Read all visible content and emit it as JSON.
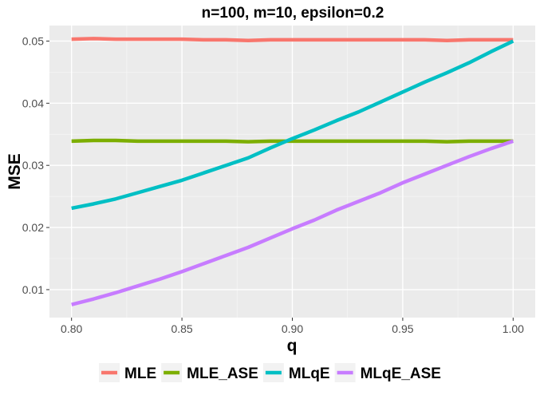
{
  "chart_data": {
    "type": "line",
    "title": "n=100, m=10, epsilon=0.2",
    "xlabel": "q",
    "ylabel": "MSE",
    "xlim": [
      0.79,
      1.01
    ],
    "ylim": [
      0.0055,
      0.0525
    ],
    "x_ticks": [
      "0.80",
      "0.85",
      "0.90",
      "0.95",
      "1.00"
    ],
    "y_ticks": [
      "0.01",
      "0.02",
      "0.03",
      "0.04",
      "0.05"
    ],
    "grid": true,
    "legend_position": "bottom",
    "panel_background": "#ebebeb",
    "x": [
      0.8,
      0.81,
      0.82,
      0.83,
      0.84,
      0.85,
      0.86,
      0.87,
      0.88,
      0.89,
      0.9,
      0.91,
      0.92,
      0.93,
      0.94,
      0.95,
      0.96,
      0.97,
      0.98,
      0.99,
      1.0
    ],
    "series": [
      {
        "name": "MLE",
        "color": "#F8766D",
        "values": [
          0.0503,
          0.0504,
          0.0503,
          0.0503,
          0.0503,
          0.0503,
          0.0502,
          0.0502,
          0.0501,
          0.0502,
          0.0502,
          0.0502,
          0.0502,
          0.0502,
          0.0502,
          0.0502,
          0.0502,
          0.0501,
          0.0502,
          0.0502,
          0.0502
        ]
      },
      {
        "name": "MLE_ASE",
        "color": "#7CAE00",
        "values": [
          0.0339,
          0.034,
          0.034,
          0.0339,
          0.0339,
          0.0339,
          0.0339,
          0.0339,
          0.0338,
          0.0339,
          0.0339,
          0.0339,
          0.0339,
          0.0339,
          0.0339,
          0.0339,
          0.0339,
          0.0338,
          0.0339,
          0.0339,
          0.0339
        ]
      },
      {
        "name": "MLqE",
        "color": "#00BFC4",
        "values": [
          0.0231,
          0.0238,
          0.0246,
          0.0256,
          0.0266,
          0.0276,
          0.0288,
          0.03,
          0.0312,
          0.0328,
          0.0343,
          0.0357,
          0.0372,
          0.0386,
          0.0402,
          0.0418,
          0.0434,
          0.0449,
          0.0465,
          0.0483,
          0.05
        ]
      },
      {
        "name": "MLqE_ASE",
        "color": "#C77CFF",
        "values": [
          0.0076,
          0.0085,
          0.0095,
          0.0106,
          0.0117,
          0.0129,
          0.0142,
          0.0155,
          0.0168,
          0.0183,
          0.0198,
          0.0212,
          0.0228,
          0.0242,
          0.0256,
          0.0272,
          0.0286,
          0.03,
          0.0314,
          0.0327,
          0.0339
        ]
      }
    ]
  }
}
